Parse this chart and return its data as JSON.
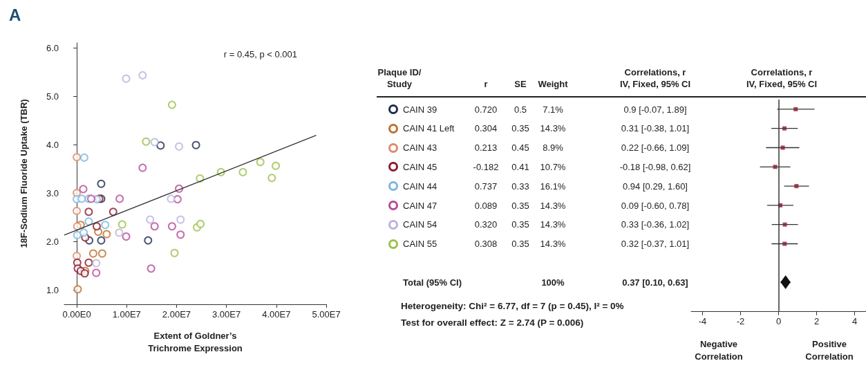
{
  "chart_data": [
    {
      "type": "scatter",
      "title": "A",
      "xlabel": "Extent of Goldner’s\nTrichrome Expression",
      "ylabel": "18F-Sodium Fluoride Uptake (TBR)",
      "annotations": [
        "r = 0.45, p < 0.001"
      ],
      "xlim": [
        -2500000,
        50000000
      ],
      "xticks": [
        {
          "value": 0,
          "label": "0.00E0"
        },
        {
          "value": 10000000,
          "label": "1.00E7"
        },
        {
          "value": 20000000,
          "label": "2.00E7"
        },
        {
          "value": 30000000,
          "label": "3.00E7"
        },
        {
          "value": 40000000,
          "label": "4.00E7"
        },
        {
          "value": 50000000,
          "label": "5.00E7"
        }
      ],
      "ylim": [
        0.7,
        6.1
      ],
      "yticks": [
        {
          "value": 1,
          "label": "1.0"
        },
        {
          "value": 2,
          "label": "2.0"
        },
        {
          "value": 3,
          "label": "3.0"
        },
        {
          "value": 4,
          "label": "4.0"
        },
        {
          "value": 5,
          "label": "5.0"
        },
        {
          "value": 6,
          "label": "6.0"
        }
      ],
      "series": [
        {
          "color": "#1f2d4f",
          "marker": "circle",
          "x": [
            16800000,
            23900000,
            4900000,
            4900000,
            2500000,
            4900000,
            14300000
          ],
          "values": [
            3.98,
            3.99,
            3.19,
            2.88,
            2.02,
            2.02,
            2.02
          ]
        },
        {
          "color": "#c0712a",
          "marker": "circle",
          "x": [
            800000,
            4300000,
            6000000,
            3300000,
            5100000,
            200000,
            1700000
          ],
          "values": [
            2.34,
            2.2,
            2.15,
            1.75,
            1.75,
            1.01,
            1.39
          ]
        },
        {
          "color": "#e08a6a",
          "marker": "circle",
          "x": [
            0,
            0,
            0,
            100000,
            0
          ],
          "values": [
            3.74,
            3.0,
            2.63,
            2.31,
            1.7
          ]
        },
        {
          "color": "#8b1a2e",
          "marker": "circle",
          "x": [
            2400000,
            7300000,
            4000000,
            1700000,
            4500000,
            100000,
            200000,
            800000,
            1600000,
            2400000
          ],
          "values": [
            2.61,
            2.61,
            2.31,
            2.08,
            2.88,
            1.56,
            1.44,
            1.39,
            1.34,
            1.56
          ]
        },
        {
          "color": "#7ab8e0",
          "marker": "circle",
          "x": [
            1500000,
            0,
            1000000,
            2400000,
            4000000,
            2400000,
            5700000,
            100000,
            1400000
          ],
          "values": [
            3.73,
            2.87,
            2.88,
            2.88,
            2.87,
            2.41,
            2.34,
            2.13,
            2.18
          ]
        },
        {
          "color": "#b84a98",
          "marker": "circle",
          "x": [
            1300000,
            13200000,
            20500000,
            8600000,
            20200000,
            2900000,
            15600000,
            19100000,
            20800000,
            9900000,
            14900000,
            3900000
          ],
          "values": [
            3.08,
            3.52,
            3.09,
            2.88,
            2.87,
            2.88,
            2.31,
            2.31,
            2.14,
            2.1,
            1.44,
            1.35
          ]
        },
        {
          "color": "#b8b4dc",
          "marker": "circle",
          "x": [
            9900000,
            13200000,
            15600000,
            20500000,
            18900000,
            20800000,
            14700000,
            8500000,
            3900000
          ],
          "values": [
            5.36,
            5.43,
            4.05,
            3.96,
            2.88,
            2.45,
            2.45,
            2.18,
            1.55
          ]
        },
        {
          "color": "#9cc04c",
          "marker": "circle",
          "x": [
            19100000,
            13900000,
            24700000,
            28900000,
            9100000,
            24100000,
            24800000,
            19600000,
            33300000,
            36800000,
            39900000,
            39100000
          ],
          "values": [
            4.82,
            4.06,
            3.3,
            3.43,
            2.35,
            2.29,
            2.36,
            1.76,
            3.43,
            3.64,
            3.56,
            3.31
          ]
        },
        {
          "type": "line",
          "color": "#333333",
          "x": [
            -2500000,
            48000000
          ],
          "values": [
            2.13,
            4.19
          ]
        }
      ]
    },
    {
      "type": "other",
      "ylabel": "Plaque ID/\nStudy",
      "categories": [
        "r",
        "SE",
        "Weight",
        "Correlations, r\nIV, Fixed, 95% CI"
      ],
      "y_categories": [
        "CAIN 39",
        "CAIN 41 Left",
        "CAIN 43",
        "CAIN 45",
        "CAIN 44",
        "CAIN 47",
        "CAIN 54",
        "CAIN 55",
        "Total (95% CI)"
      ],
      "cell_labels": [
        [
          "0.720",
          "0.5",
          "7.1%",
          "0.9 [-0.07, 1.89]"
        ],
        [
          "0.304",
          "0.35",
          "14.3%",
          "0.31 [-0.38, 1.01]"
        ],
        [
          "0.213",
          "0.45",
          "8.9%",
          "0.22 [-0.66, 1.09]"
        ],
        [
          "-0.182",
          "0.41",
          "10.7%",
          "-0.18 [-0.98, 0.62]"
        ],
        [
          "0.737",
          "0.33",
          "16.1%",
          "0.94 [0.29, 1.60]"
        ],
        [
          "0.089",
          "0.35",
          "14.3%",
          "0.09 [-0.60, 0.78]"
        ],
        [
          "0.320",
          "0.35",
          "14.3%",
          "0.33 [-0.36, 1.02]"
        ],
        [
          "0.308",
          "0.35",
          "14.3%",
          "0.32 [-0.37, 1.01]"
        ],
        [
          null,
          null,
          "100%",
          "0.37 [0.10, 0.63]"
        ]
      ],
      "annotations": [
        "Heterogeneity: Chi² = 6.77, df = 7 (p = 0.45), I² = 0%",
        "Test for overall effect: Z = 2.74 (P = 0.006)"
      ]
    },
    {
      "type": "scatter",
      "orientation": "horizontal",
      "title": "Correlations, r\nIV, Fixed, 95% CI",
      "categories": [
        null,
        null,
        null,
        null,
        null,
        null,
        null,
        null,
        null,
        null,
        null
      ],
      "xlim": [
        -4.6,
        4.6
      ],
      "xticks": [
        -4,
        -2,
        0,
        2,
        4
      ],
      "tick_labels": "x",
      "ref_lines": [
        {
          "axis": "x",
          "value": 0,
          "color": "#333333"
        }
      ],
      "series": [
        {
          "color": "#8b1a2e",
          "marker": "square",
          "values": [
            0.9,
            0.31,
            0.22,
            -0.18,
            0.94,
            0.09,
            0.33,
            0.32,
            null,
            null,
            null
          ],
          "errors": [
            [
              -0.07,
              1.89
            ],
            [
              -0.38,
              1.01
            ],
            [
              -0.66,
              1.09
            ],
            [
              -0.98,
              0.62
            ],
            [
              0.29,
              1.6
            ],
            [
              -0.6,
              0.78
            ],
            [
              -0.36,
              1.02
            ],
            [
              -0.37,
              1.01
            ],
            null,
            null,
            null
          ]
        },
        {
          "color": "#111111",
          "marker": "diamond",
          "values": [
            null,
            null,
            null,
            null,
            null,
            null,
            null,
            null,
            null,
            0.37,
            null
          ],
          "errors": [
            null,
            null,
            null,
            null,
            null,
            null,
            null,
            null,
            null,
            [
              0.1,
              0.63
            ],
            null
          ]
        }
      ],
      "annotations": [
        "Negative\nCorrelation",
        "Positive\nCorrelation"
      ]
    }
  ]
}
